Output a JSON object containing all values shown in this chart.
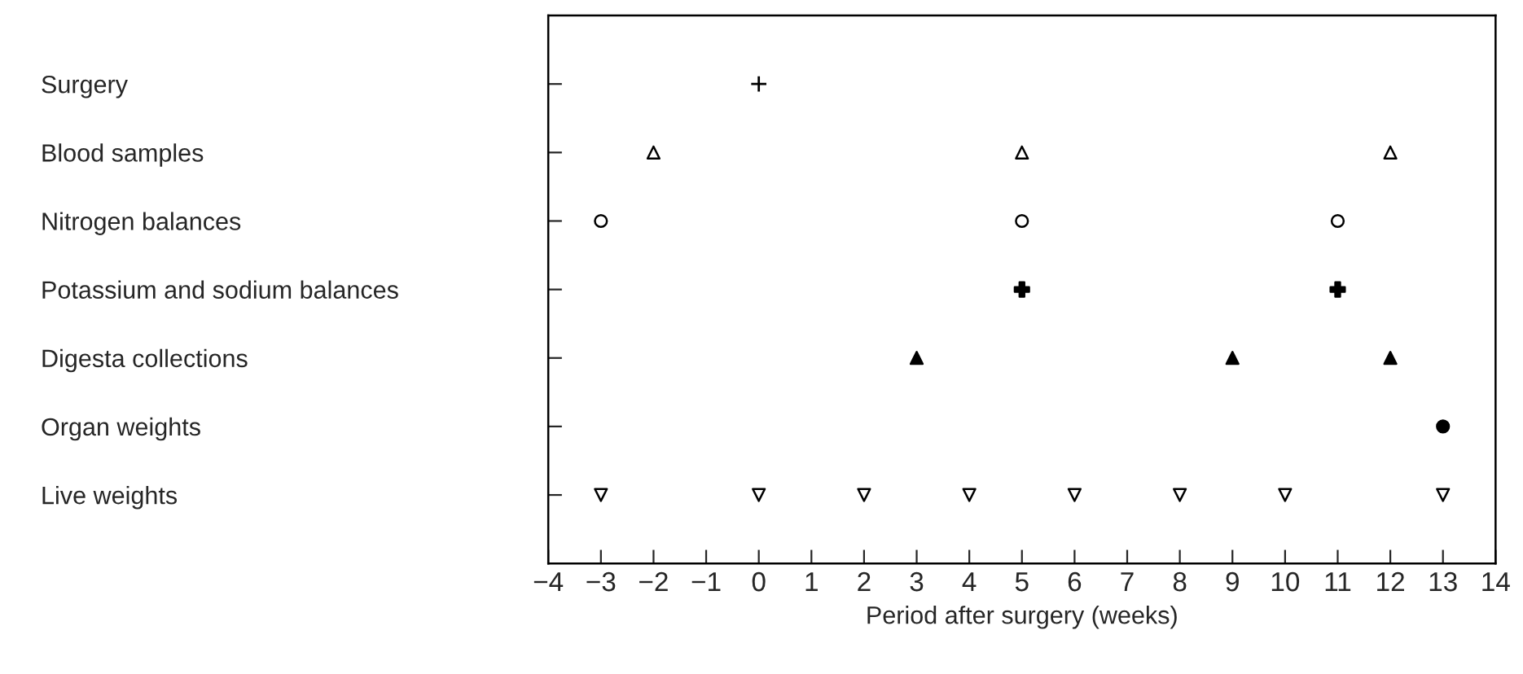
{
  "chart_data": {
    "type": "scatter",
    "orientation": "horizontal",
    "xlabel": "Period after surgery (weeks)",
    "categories": [
      "Surgery",
      "Blood samples",
      "Nitrogen balances",
      "Potassium and sodium balances",
      "Digesta collections",
      "Organ weights",
      "Live weights"
    ],
    "xlim": [
      -4,
      14
    ],
    "xticks": [
      {
        "value": -4,
        "label": "−4"
      },
      {
        "value": -3,
        "label": "−3"
      },
      {
        "value": -2,
        "label": "−2"
      },
      {
        "value": -1,
        "label": "−1"
      },
      0,
      1,
      2,
      3,
      4,
      5,
      6,
      7,
      8,
      9,
      10,
      11,
      12,
      13,
      14
    ],
    "grid": false,
    "series": [
      {
        "color": "#000000",
        "marker": "cross",
        "x": [
          "Surgery"
        ],
        "values": [
          0
        ]
      },
      {
        "color": "#000000",
        "marker": "triangle-open",
        "x": [
          "Blood samples",
          "Blood samples",
          "Blood samples"
        ],
        "values": [
          -2,
          5,
          12
        ]
      },
      {
        "color": "#000000",
        "marker": "circle-open",
        "x": [
          "Nitrogen balances",
          "Nitrogen balances",
          "Nitrogen balances"
        ],
        "values": [
          -3,
          5,
          11
        ]
      },
      {
        "color": "#000000",
        "marker": "cross-bold",
        "x": [
          "Potassium and sodium balances",
          "Potassium and sodium balances"
        ],
        "values": [
          5,
          11
        ]
      },
      {
        "color": "#000000",
        "marker": "triangle",
        "x": [
          "Digesta collections",
          "Digesta collections",
          "Digesta collections"
        ],
        "values": [
          3,
          9,
          12
        ]
      },
      {
        "color": "#000000",
        "marker": "circle",
        "x": [
          "Organ weights"
        ],
        "values": [
          13
        ]
      },
      {
        "color": "#000000",
        "marker": "triangle-down-open",
        "x": [
          "Live weights",
          "Live weights",
          "Live weights",
          "Live weights",
          "Live weights",
          "Live weights",
          "Live weights",
          "Live weights"
        ],
        "values": [
          -3,
          0,
          2,
          4,
          6,
          8,
          10,
          13
        ]
      }
    ]
  }
}
